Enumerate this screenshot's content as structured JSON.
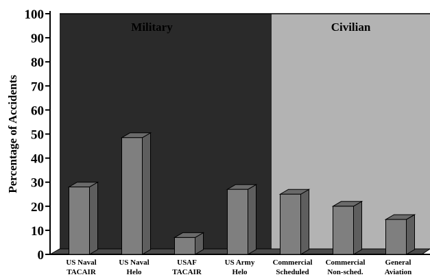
{
  "chart_data": {
    "type": "bar",
    "title": "",
    "ylabel": "Percentage of Accidents",
    "xlabel": "",
    "ylim": [
      0,
      100
    ],
    "yticks": [
      "0",
      "10",
      "20",
      "30",
      "40",
      "50",
      "60",
      "70",
      "80",
      "90",
      "100"
    ],
    "categories": [
      [
        "US Naval",
        "TACAIR"
      ],
      [
        "US Naval",
        "Helo"
      ],
      [
        "USAF",
        "TACAIR"
      ],
      [
        "US Army",
        "Helo"
      ],
      [
        "Commercial",
        "Scheduled"
      ],
      [
        "Commercial",
        "Non-sched."
      ],
      [
        "General",
        "Aviation"
      ]
    ],
    "values": [
      28,
      48.5,
      7,
      27,
      25,
      20,
      14.5
    ],
    "regions": [
      {
        "label": "Military",
        "categories": [
          0,
          1,
          2,
          3
        ],
        "color": "#2a2a2a",
        "text_color": "#000000"
      },
      {
        "label": "Civilian",
        "categories": [
          4,
          5,
          6
        ],
        "color": "#b3b3b3",
        "text_color": "#ffffff"
      }
    ],
    "bar_color": "#7f7f7f",
    "grid": false
  }
}
